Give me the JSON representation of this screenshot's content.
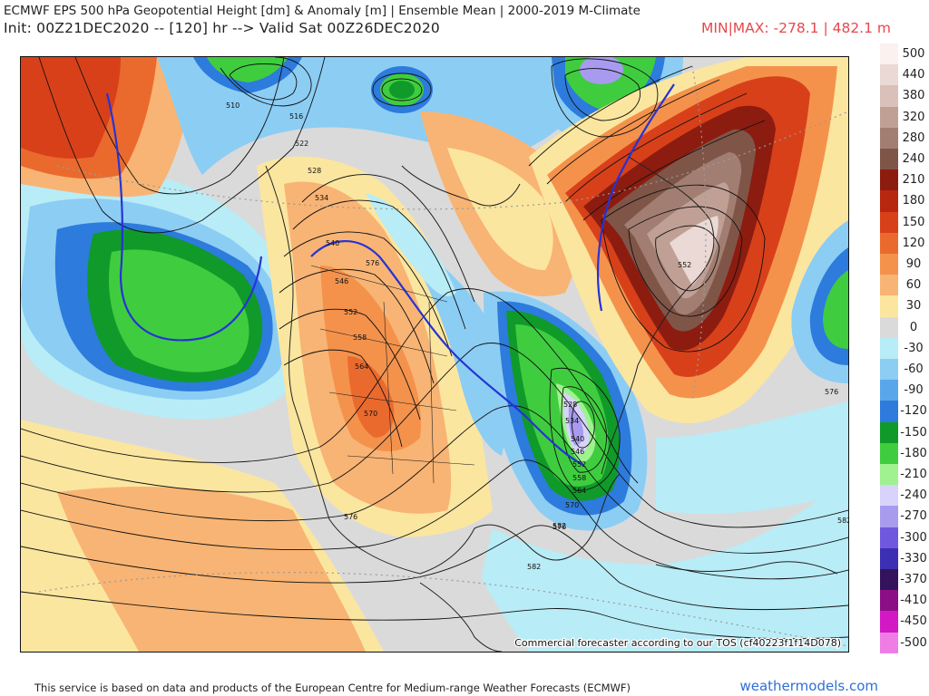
{
  "header": {
    "title_line1": "ECMWF EPS 500 hPa Geopotential Height [dm] & Anomaly [m] | Ensemble Mean | 2000-2019 M-Climate",
    "title_line2": "Init: 00Z21DEC2020 -- [120] hr --> Valid Sat 00Z26DEC2020",
    "minmax": "MIN|MAX: -278.1 | 482.1 m",
    "minmax_color": "#e8474b"
  },
  "map": {
    "tos_notice": "Commercial forecaster according to our TOS (cf40223f1f14D078)",
    "contour_labels": [
      "510",
      "516",
      "522",
      "528",
      "534",
      "540",
      "546",
      "552",
      "558",
      "564",
      "570",
      "576",
      "582",
      "528",
      "534",
      "540",
      "546",
      "552",
      "558",
      "564",
      "570",
      "576",
      "582",
      "576",
      "582",
      "576",
      "552"
    ]
  },
  "legend": {
    "entries": [
      {
        "label": "500",
        "color": "#fbf1ee"
      },
      {
        "label": "440",
        "color": "#ead9d4"
      },
      {
        "label": "380",
        "color": "#d9c1b9"
      },
      {
        "label": "320",
        "color": "#c0a095"
      },
      {
        "label": "280",
        "color": "#a27e72"
      },
      {
        "label": "240",
        "color": "#7f5548"
      },
      {
        "label": "210",
        "color": "#8c1c10"
      },
      {
        "label": "180",
        "color": "#b8260f"
      },
      {
        "label": "150",
        "color": "#d8401a"
      },
      {
        "label": "120",
        "color": "#ea6a2e"
      },
      {
        "label": "90",
        "color": "#f4924c"
      },
      {
        "label": "60",
        "color": "#f8b474"
      },
      {
        "label": "30",
        "color": "#fbe6a0"
      },
      {
        "label": "0",
        "color": "#dadada"
      },
      {
        "label": "-30",
        "color": "#b8ecf6"
      },
      {
        "label": "-60",
        "color": "#8ccdf4"
      },
      {
        "label": "-90",
        "color": "#59a6ea"
      },
      {
        "label": "-120",
        "color": "#2d7bdc"
      },
      {
        "label": "-150",
        "color": "#109a2a"
      },
      {
        "label": "-180",
        "color": "#3fcd3f"
      },
      {
        "label": "-210",
        "color": "#9ff28f"
      },
      {
        "label": "-240",
        "color": "#d8d3fb"
      },
      {
        "label": "-270",
        "color": "#a89bef"
      },
      {
        "label": "-300",
        "color": "#6f58de"
      },
      {
        "label": "-330",
        "color": "#3c2fb3"
      },
      {
        "label": "-370",
        "color": "#34135d"
      },
      {
        "label": "-410",
        "color": "#8c0e86"
      },
      {
        "label": "-450",
        "color": "#d219c4"
      },
      {
        "label": "-500",
        "color": "#f07de6"
      }
    ]
  },
  "footer": {
    "disclaimer": "This service is based on data and products of the European Centre for Medium-range Weather Forecasts (ECMWF)",
    "brand": "weathermodels.com",
    "brand_color": "#2f6fd6"
  }
}
